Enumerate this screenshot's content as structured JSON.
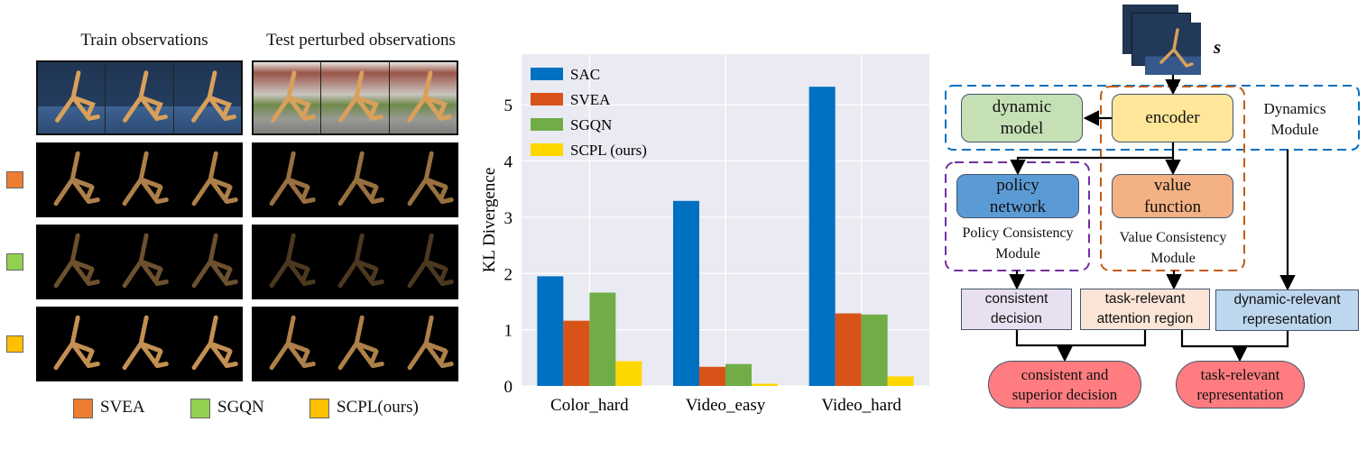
{
  "left_panel": {
    "col_titles": [
      "Train observations",
      "Test perturbed observations"
    ],
    "row_markers": [
      {
        "method": "SVEA",
        "color": "#ed7d31"
      },
      {
        "method": "SGQN",
        "color": "#92d050"
      },
      {
        "method": "SCPL(ours)",
        "color": "#ffc000"
      }
    ],
    "legend": [
      {
        "label": "SVEA",
        "color": "#ed7d31"
      },
      {
        "label": "SGQN",
        "color": "#92d050"
      },
      {
        "label": "SCPL(ours)",
        "color": "#ffc000"
      }
    ]
  },
  "chart_data": {
    "type": "bar",
    "categories": [
      "Color_hard",
      "Video_easy",
      "Video_hard"
    ],
    "series": [
      {
        "name": "SAC",
        "color": "#0070c0",
        "values": [
          1.95,
          3.29,
          5.32
        ]
      },
      {
        "name": "SVEA",
        "color": "#d95319",
        "values": [
          1.16,
          0.34,
          1.29
        ]
      },
      {
        "name": "SGQN",
        "color": "#70ad47",
        "values": [
          1.66,
          0.39,
          1.27
        ]
      },
      {
        "name": "SCPL (ours)",
        "color": "#ffd700",
        "values": [
          0.44,
          0.04,
          0.17
        ]
      }
    ],
    "title": "",
    "xlabel": "",
    "ylabel": "KL Divergence",
    "ylim": [
      0,
      5.9
    ],
    "yticks": [
      "0",
      "1",
      "2",
      "3",
      "4",
      "5"
    ],
    "grid": true,
    "legend_position": "top-left",
    "background": "#eaeaf2"
  },
  "diagram": {
    "state_label": "s",
    "nodes": {
      "dynamic_model": [
        "dynamic",
        "model"
      ],
      "encoder": "encoder",
      "policy_network": [
        "policy",
        "network"
      ],
      "value_function": [
        "value",
        "function"
      ],
      "consistent_decision": [
        "consistent",
        "decision"
      ],
      "attention_region": [
        "task-relevant",
        "attention region"
      ],
      "dynamic_representation": [
        "dynamic-relevant",
        "representation"
      ],
      "superior_decision": [
        "consistent and",
        "superior decision"
      ],
      "task_representation": [
        "task-relevant",
        "representation"
      ]
    },
    "modules": {
      "dynamics": [
        "Dynamics",
        "Module"
      ],
      "policy": [
        "Policy Consistency",
        "Module"
      ],
      "value": [
        "Value Consistency",
        "Module"
      ]
    },
    "colors": {
      "dynamic_model": "#c5e0b4",
      "encoder": "#ffe699",
      "policy_network": "#5b9bd5",
      "value_function": "#f4b183",
      "consistent_decision": "#e8e0f0",
      "attention_region": "#fbe5d6",
      "dynamic_representation": "#bdd7ee",
      "outputs": "#ff7c80",
      "dynamics_module_border": "#0070c0",
      "policy_module_border": "#7030a0",
      "value_module_border": "#c55a11"
    }
  }
}
